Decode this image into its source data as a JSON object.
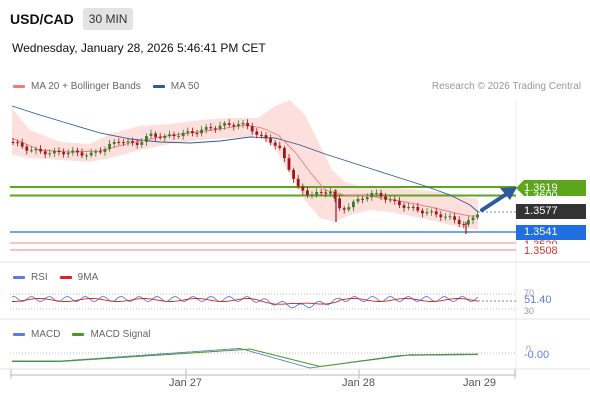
{
  "header": {
    "symbol": "USD/CAD",
    "timeframe": "30 MIN",
    "datetime": "Wednesday, January 28, 2026 5:46:41 PM CET"
  },
  "legend": {
    "ma20": "MA 20 + Bollinger Bands",
    "ma50": "MA 50",
    "copyright": "Research © 2026 Trading Central"
  },
  "colors": {
    "ma20": "#f47a7a",
    "ma50": "#2d5a9a",
    "bands": "#fde0de",
    "resistance": "#5ca51c",
    "support": "#1f6fe0",
    "support_faint": "#f2a0a0",
    "price_tag": "#333333",
    "rsi": "#5b7fd6",
    "rsi_ma": "#e02020",
    "macd": "#5b7fd6",
    "macd_signal": "#4a9a1c",
    "candle_up": "#3a7a2a",
    "candle_down": "#9a1a1a"
  },
  "price_labels": {
    "resistance_top": "1.3619",
    "resistance_hidden": "1.3600",
    "current": "1.3577",
    "support": "1.3541",
    "support2_hidden": "1.3520",
    "support3": "1.3508"
  },
  "rsi": {
    "title": "RSI",
    "ma_title": "9MA",
    "level_high": "70",
    "level_low": "30",
    "value": "51.40"
  },
  "macd": {
    "title": "MACD",
    "signal_title": "MACD Signal",
    "zero": "0",
    "value": "-0.00"
  },
  "xaxis": [
    "Jan 27",
    "Jan 28",
    "Jan 29"
  ]
}
